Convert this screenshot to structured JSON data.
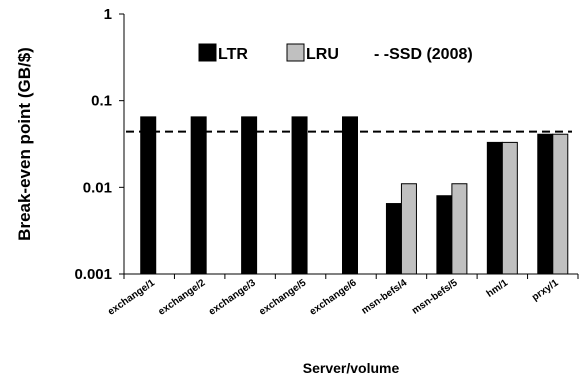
{
  "chart_data": {
    "type": "bar",
    "categories": [
      "exchange/1",
      "exchange/2",
      "exchange/3",
      "exchange/5",
      "exchange/6",
      "msn-befs/4",
      "msn-befs/5",
      "hm/1",
      "prxy/1"
    ],
    "series": [
      {
        "name": "LTR",
        "color": "#000000",
        "values": [
          0.065,
          0.065,
          0.065,
          0.065,
          0.065,
          0.0065,
          0.008,
          0.033,
          0.041
        ]
      },
      {
        "name": "LRU",
        "color": "#c0c0c0",
        "values": [
          null,
          null,
          null,
          null,
          null,
          0.011,
          0.011,
          0.033,
          0.041
        ]
      }
    ],
    "reference_line": {
      "name": "SSD (2008)",
      "value": 0.044,
      "style": "dashed"
    },
    "legend_entries": [
      "LTR",
      "LRU",
      "- -SSD (2008)"
    ],
    "ylabel": "Break-even point (GB/$)",
    "xlabel": "Server/volume",
    "yscale": "log",
    "ylim": [
      0.001,
      1
    ],
    "yticks": [
      "1",
      "0.1",
      "0.01",
      "0.001"
    ],
    "legend_position": "top",
    "grid": false
  }
}
